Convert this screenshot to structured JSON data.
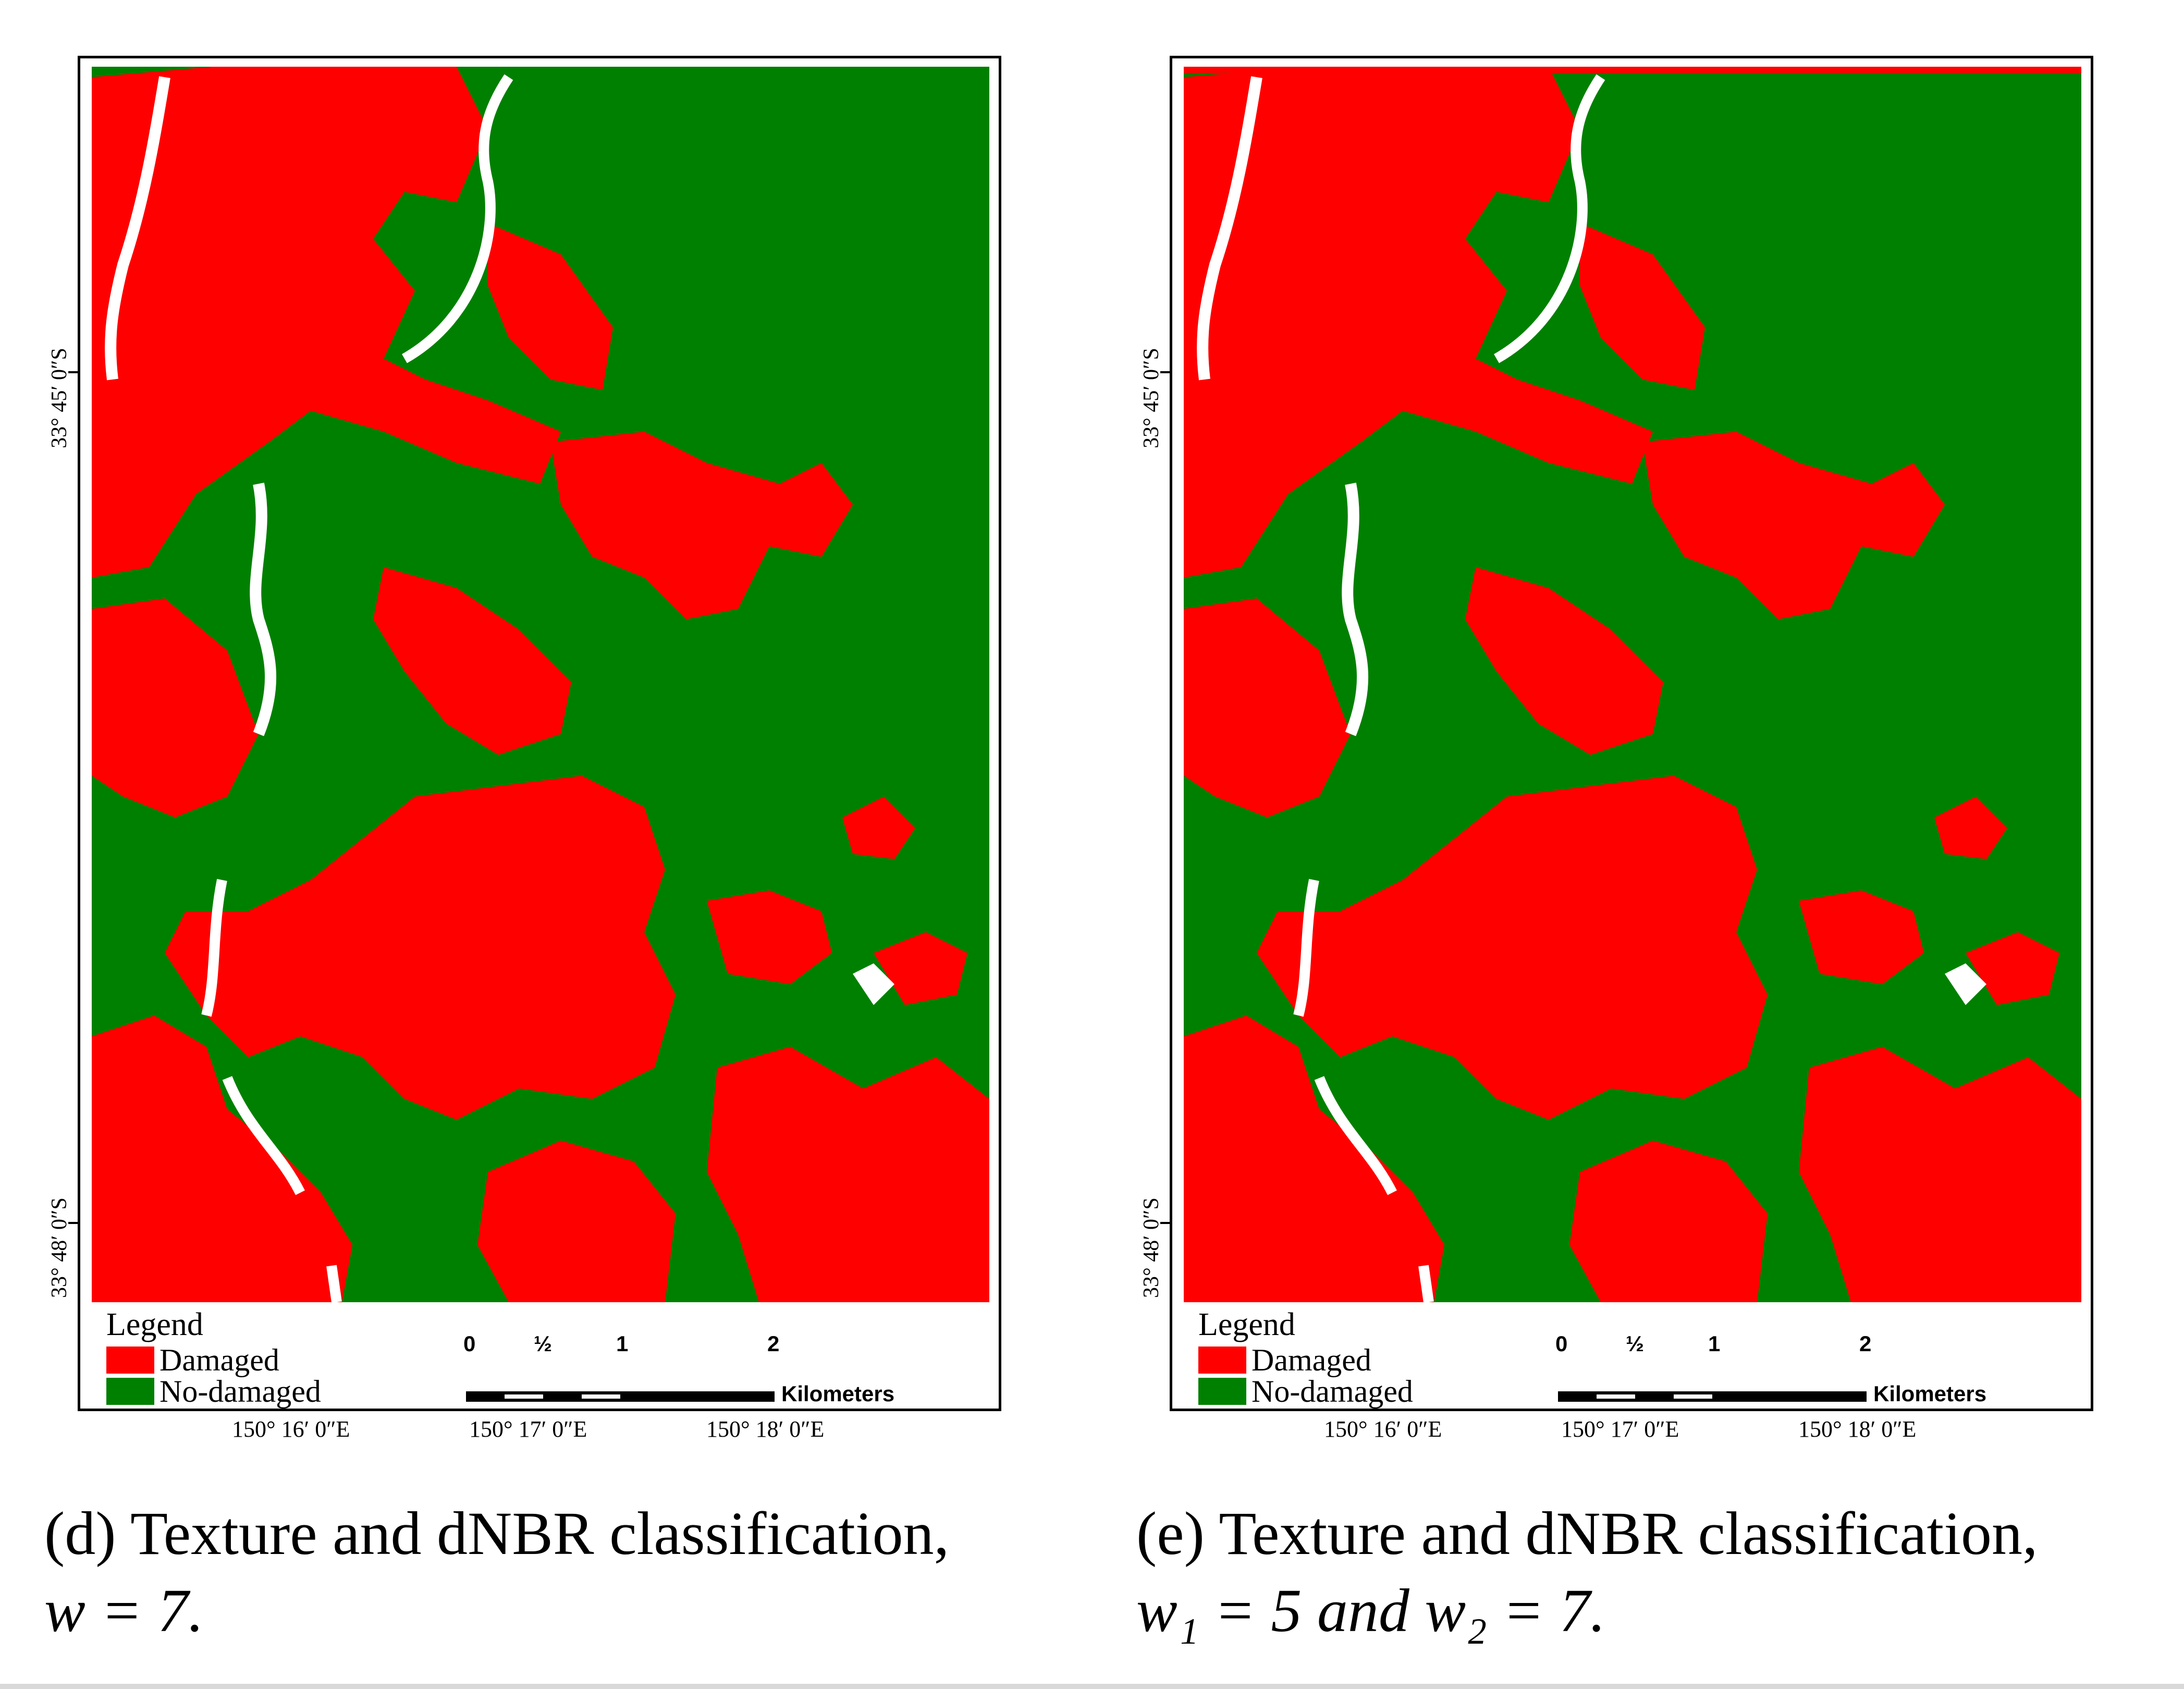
{
  "colors": {
    "damaged": "#ff0000",
    "no_damaged": "#008000",
    "background": "#ffffff",
    "river": "#ffffff"
  },
  "panels": [
    {
      "legend": {
        "title": "Legend",
        "items": [
          {
            "label": "Damaged",
            "color": "#ff0000"
          },
          {
            "label": "No-damaged",
            "color": "#008000"
          }
        ]
      },
      "scale": {
        "labels": [
          "0",
          "½",
          "1",
          "2"
        ],
        "unit": "Kilometers"
      },
      "lat_labels": [
        "33° 45′ 0″S",
        "33° 48′ 0″S"
      ],
      "lon_labels": [
        "150° 16′ 0″E",
        "150° 17′ 0″E",
        "150° 18′ 0″E"
      ],
      "caption": {
        "prefix": "(d) Texture and dNBR classification,",
        "math": "w = 7."
      }
    },
    {
      "legend": {
        "title": "Legend",
        "items": [
          {
            "label": "Damaged",
            "color": "#ff0000"
          },
          {
            "label": "No-damaged",
            "color": "#008000"
          }
        ]
      },
      "scale": {
        "labels": [
          "0",
          "½",
          "1",
          "2"
        ],
        "unit": "Kilometers"
      },
      "lat_labels": [
        "33° 45′ 0″S",
        "33° 48′ 0″S"
      ],
      "lon_labels": [
        "150° 16′ 0″E",
        "150° 17′ 0″E",
        "150° 18′ 0″E"
      ],
      "caption": {
        "prefix": "(e) Texture and dNBR classification,",
        "math": "w₁ = 5 and w₂ = 7."
      }
    }
  ]
}
